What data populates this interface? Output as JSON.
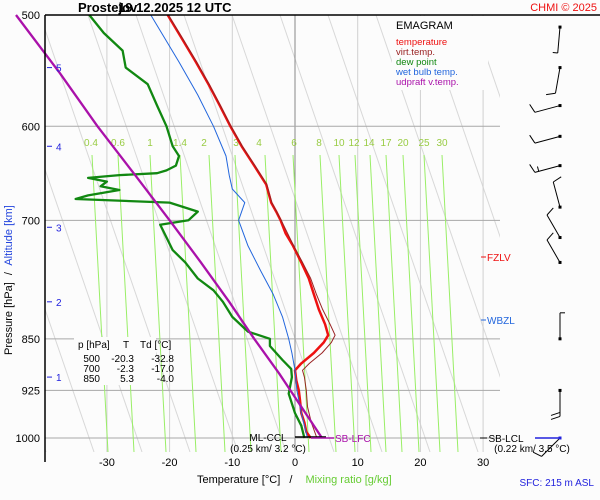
{
  "header": {
    "station": "Prostejov",
    "datetime": "19.12.2025 12 UTC",
    "copyright": "CHMI © 2025"
  },
  "footer": {
    "sfc": "SFC: 215 m ASL"
  },
  "chart_data": {
    "type": "line",
    "title": "EMAGRAM",
    "xlabel": "Temperature [°C]",
    "xlabel_sep": "/",
    "xlabel2": "Mixing ratio [g/kg]",
    "ylabel": "Pressure [hPa]",
    "ylabel_sep": "/",
    "ylabel2": "Altitude [km]",
    "xlim": [
      -38,
      32
    ],
    "ylim": [
      1040,
      500
    ],
    "x_ticks": [
      -30,
      -20,
      -10,
      0,
      10,
      20,
      30
    ],
    "x_tick_labels": [
      "-30",
      "-20",
      "-10",
      "0",
      "10",
      "20",
      "30"
    ],
    "p_ticks": [
      500,
      600,
      700,
      850,
      925,
      1000
    ],
    "p_tick_labels": [
      "500",
      "600",
      "700",
      "850",
      "925",
      "1000"
    ],
    "alt_ticks": [
      {
        "km": 1,
        "p": 905
      },
      {
        "km": 2,
        "p": 800
      },
      {
        "km": 3,
        "p": 708
      },
      {
        "km": 4,
        "p": 620
      },
      {
        "km": 5,
        "p": 545
      }
    ],
    "mixing_ratio_labels": [
      "0.4",
      "0.6",
      "1",
      "1.4",
      "2",
      "3",
      "4",
      "6",
      "8",
      "10",
      "12",
      "14",
      "17",
      "20",
      "25",
      "30"
    ],
    "legend": [
      {
        "label": "temperature",
        "color": "#ee1111"
      },
      {
        "label": "virt.temp.",
        "color": "#992222"
      },
      {
        "label": "dew point",
        "color": "#118811"
      },
      {
        "label": "wet bulb temp.",
        "color": "#2266dd"
      },
      {
        "label": "udpraft v.temp.",
        "color": "#aa11aa"
      }
    ],
    "series": [
      {
        "name": "temperature",
        "color": "#ee1111",
        "points": [
          [
            1000,
            2.5
          ],
          [
            990,
            1.8
          ],
          [
            975,
            1.5
          ],
          [
            960,
            1.0
          ],
          [
            940,
            0.8
          ],
          [
            925,
            0.6
          ],
          [
            910,
            0.2
          ],
          [
            895,
            0.0
          ],
          [
            885,
            1.0
          ],
          [
            870,
            3.0
          ],
          [
            855,
            4.6
          ],
          [
            845,
            5.3
          ],
          [
            830,
            4.8
          ],
          [
            810,
            3.8
          ],
          [
            790,
            3.0
          ],
          [
            770,
            2.2
          ],
          [
            750,
            1.0
          ],
          [
            730,
            -0.3
          ],
          [
            715,
            -1.5
          ],
          [
            700,
            -2.3
          ],
          [
            690,
            -3.0
          ],
          [
            680,
            -3.8
          ],
          [
            660,
            -4.6
          ],
          [
            640,
            -6.5
          ],
          [
            620,
            -8.5
          ],
          [
            600,
            -10.3
          ],
          [
            580,
            -12.0
          ],
          [
            560,
            -13.8
          ],
          [
            540,
            -15.8
          ],
          [
            520,
            -18.0
          ],
          [
            500,
            -20.3
          ]
        ]
      },
      {
        "name": "virt.temp.",
        "color": "#992222",
        "points": [
          [
            1000,
            3.5
          ],
          [
            975,
            2.6
          ],
          [
            950,
            2.0
          ],
          [
            925,
            1.8
          ],
          [
            905,
            1.5
          ],
          [
            895,
            1.2
          ],
          [
            885,
            2.3
          ],
          [
            870,
            4.3
          ],
          [
            855,
            5.8
          ],
          [
            845,
            6.4
          ],
          [
            830,
            5.6
          ],
          [
            810,
            4.4
          ],
          [
            790,
            3.4
          ],
          [
            770,
            2.5
          ],
          [
            750,
            1.2
          ],
          [
            730,
            -0.2
          ],
          [
            700,
            -2.2
          ],
          [
            680,
            -3.7
          ],
          [
            660,
            -4.5
          ],
          [
            640,
            -6.4
          ],
          [
            620,
            -8.4
          ],
          [
            600,
            -10.2
          ],
          [
            580,
            -11.9
          ],
          [
            560,
            -13.7
          ],
          [
            540,
            -15.7
          ],
          [
            520,
            -17.9
          ],
          [
            500,
            -20.2
          ]
        ]
      },
      {
        "name": "dew point",
        "color": "#118811",
        "points": [
          [
            1000,
            1.5
          ],
          [
            980,
            1.0
          ],
          [
            960,
            0.0
          ],
          [
            930,
            -1.0
          ],
          [
            905,
            -0.5
          ],
          [
            893,
            -0.6
          ],
          [
            880,
            -2.0
          ],
          [
            860,
            -4.0
          ],
          [
            850,
            -4.0
          ],
          [
            840,
            -7.5
          ],
          [
            820,
            -10.0
          ],
          [
            800,
            -11.5
          ],
          [
            785,
            -13.0
          ],
          [
            770,
            -15.5
          ],
          [
            750,
            -17.5
          ],
          [
            735,
            -19.5
          ],
          [
            720,
            -20.5
          ],
          [
            705,
            -21.5
          ],
          [
            700,
            -17.0
          ],
          [
            690,
            -15.5
          ],
          [
            680,
            -20.0
          ],
          [
            676,
            -35.0
          ],
          [
            672,
            -33.0
          ],
          [
            666,
            -28.0
          ],
          [
            662,
            -31.0
          ],
          [
            657,
            -30.0
          ],
          [
            653,
            -33.0
          ],
          [
            650,
            -28.0
          ],
          [
            648,
            -22.0
          ],
          [
            645,
            -20.5
          ],
          [
            640,
            -19.0
          ],
          [
            630,
            -18.5
          ],
          [
            620,
            -19.5
          ],
          [
            600,
            -20.5
          ],
          [
            580,
            -22.0
          ],
          [
            560,
            -23.5
          ],
          [
            545,
            -27.0
          ],
          [
            530,
            -27.5
          ],
          [
            515,
            -30.5
          ],
          [
            500,
            -32.8
          ]
        ]
      },
      {
        "name": "wet bulb temp.",
        "color": "#2266dd",
        "points": [
          [
            1000,
            2.0
          ],
          [
            960,
            1.0
          ],
          [
            925,
            0.3
          ],
          [
            895,
            0.0
          ],
          [
            870,
            -0.5
          ],
          [
            850,
            -1.0
          ],
          [
            820,
            -2.0
          ],
          [
            790,
            -3.5
          ],
          [
            760,
            -5.5
          ],
          [
            730,
            -7.5
          ],
          [
            700,
            -9.0
          ],
          [
            680,
            -8.0
          ],
          [
            665,
            -10.0
          ],
          [
            650,
            -10.5
          ],
          [
            630,
            -11.0
          ],
          [
            600,
            -13.0
          ],
          [
            570,
            -15.5
          ],
          [
            540,
            -18.5
          ],
          [
            500,
            -23.0
          ]
        ]
      },
      {
        "name": "udpraft v.temp.",
        "color": "#aa11aa",
        "points": [
          [
            1000,
            4.3
          ],
          [
            950,
            1.0
          ],
          [
            900,
            -2.5
          ],
          [
            850,
            -6.5
          ],
          [
            800,
            -10.5
          ],
          [
            750,
            -15.0
          ],
          [
            700,
            -20.0
          ],
          [
            650,
            -25.5
          ],
          [
            600,
            -31.5
          ],
          [
            550,
            -37.5
          ],
          [
            500,
            -44.5
          ]
        ]
      }
    ],
    "levels_table": {
      "headers": [
        "p [hPa]",
        "T",
        "Td [°C]"
      ],
      "rows": [
        [
          "500",
          "-20.3",
          "-32.8"
        ],
        [
          "700",
          "-2.3",
          "-17.0"
        ],
        [
          "850",
          "5.3",
          "-4.0"
        ]
      ]
    },
    "annotations": {
      "fzlv": "FZLV",
      "wbzl": "WBZL",
      "ml_ccl": "ML-CCL",
      "ml_ccl_detail": "(0.25 km/ 3.2 °C)",
      "sb_lfc": "SB-LFC",
      "sb_lcl": "SB-LCL",
      "sb_lcl_detail": "(0.22 km/ 3.5 °C)"
    },
    "wind_barbs": [
      {
        "p": 1000,
        "dir": 225,
        "kt": 10,
        "surface": true
      },
      {
        "p": 925,
        "dir": 180,
        "kt": 20
      },
      {
        "p": 850,
        "dir": 0,
        "kt": 5
      },
      {
        "p": 750,
        "dir": 330,
        "kt": 10
      },
      {
        "p": 720,
        "dir": 330,
        "kt": 10
      },
      {
        "p": 685,
        "dir": 345,
        "kt": 10
      },
      {
        "p": 640,
        "dir": 255,
        "kt": 15
      },
      {
        "p": 610,
        "dir": 255,
        "kt": 10
      },
      {
        "p": 580,
        "dir": 255,
        "kt": 10
      },
      {
        "p": 545,
        "dir": 190,
        "kt": 10
      },
      {
        "p": 510,
        "dir": 185,
        "kt": 5
      }
    ]
  }
}
